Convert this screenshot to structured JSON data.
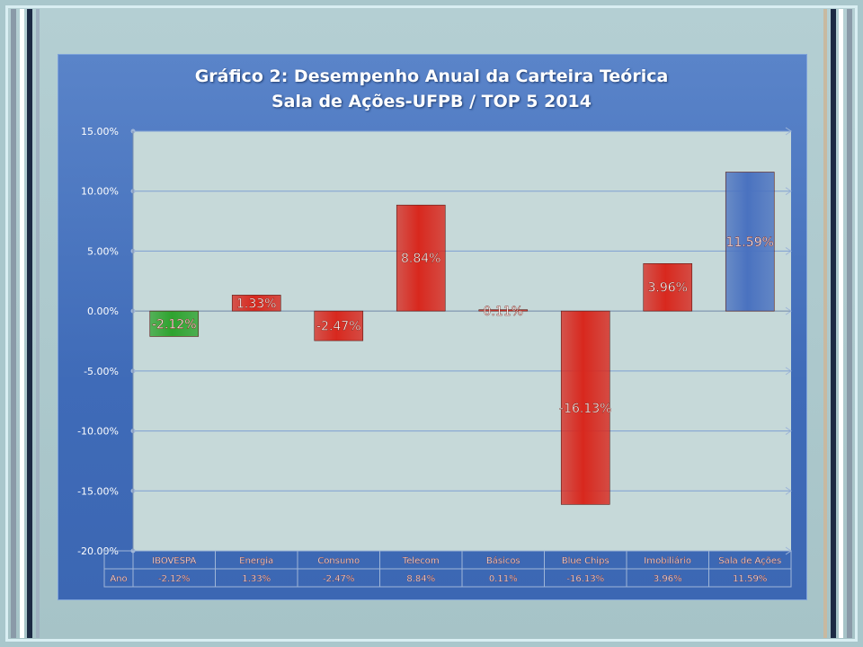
{
  "chart_data": {
    "type": "bar",
    "title_line1": "Gráfico 2: Desempenho Anual da Carteira Teórica",
    "title_line2": "Sala de Ações-UFPB  /  TOP 5       2014",
    "categories": [
      "IBOVESPA",
      "Energia",
      "Consumo",
      "Telecom",
      "Básicos",
      "Blue Chips",
      "Imobiliário",
      "Sala de Ações"
    ],
    "values": [
      -2.12,
      1.33,
      -2.47,
      8.84,
      0.11,
      -16.13,
      3.96,
      11.59
    ],
    "data_labels": [
      "-2.12%",
      "1.33%",
      "-2.47%",
      "8.84%",
      "0.11%",
      "-16.13%",
      "3.96%",
      "11.59%"
    ],
    "bar_colors": [
      "#2ea32e",
      "#d8281e",
      "#d8281e",
      "#d8281e",
      "#d8281e",
      "#d8281e",
      "#d8281e",
      "#4a72c0"
    ],
    "ylim": [
      -20,
      15
    ],
    "yticks": [
      15,
      10,
      5,
      0,
      -5,
      -10,
      -15,
      -20
    ],
    "ytick_labels": [
      "15.00%",
      "10.00%",
      "5.00%",
      "0.00%",
      "-5.00%",
      "-10.00%",
      "-15.00%",
      "-20.00%"
    ],
    "grid": true,
    "legend": "none",
    "table": {
      "row_label": "Ano",
      "values": [
        "-2.12%",
        "1.33%",
        "-2.47%",
        "8.84%",
        "0.11%",
        "-16.13%",
        "3.96%",
        "11.59%"
      ]
    }
  },
  "colors": {
    "plot_background": "#c6d9d9",
    "panel_blue": "#4670bd",
    "grid_line": "#7e9fd2"
  }
}
